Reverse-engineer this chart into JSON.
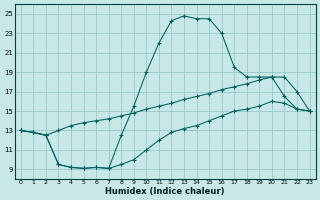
{
  "xlabel": "Humidex (Indice chaleur)",
  "bg_color": "#c8e8e8",
  "grid_color": "#96c8c8",
  "line_color": "#006060",
  "xlim": [
    -0.5,
    23.5
  ],
  "ylim": [
    8.0,
    26.0
  ],
  "xticks": [
    0,
    1,
    2,
    3,
    4,
    5,
    6,
    7,
    8,
    9,
    10,
    11,
    12,
    13,
    14,
    15,
    16,
    17,
    18,
    19,
    20,
    21,
    22,
    23
  ],
  "yticks": [
    9,
    11,
    13,
    15,
    17,
    19,
    21,
    23,
    25
  ],
  "line1_x": [
    0,
    1,
    2,
    3,
    4,
    5,
    6,
    7,
    8,
    9,
    10,
    11,
    12,
    13,
    14,
    15,
    16,
    17,
    18,
    19,
    20,
    21,
    22,
    23
  ],
  "line1_y": [
    13.0,
    12.8,
    12.5,
    13.0,
    13.5,
    13.8,
    14.0,
    14.2,
    14.5,
    14.8,
    15.2,
    15.5,
    15.8,
    16.2,
    16.5,
    16.8,
    17.2,
    17.5,
    17.8,
    18.2,
    18.5,
    18.5,
    17.0,
    15.0
  ],
  "line2_x": [
    0,
    1,
    2,
    3,
    4,
    5,
    6,
    7,
    8,
    9,
    10,
    11,
    12,
    13,
    14,
    15,
    16,
    17,
    18,
    19,
    20,
    21,
    22,
    23
  ],
  "line2_y": [
    13.0,
    12.8,
    12.5,
    9.5,
    9.2,
    9.1,
    9.2,
    9.1,
    12.5,
    15.5,
    19.0,
    22.0,
    24.3,
    24.8,
    24.5,
    24.5,
    23.0,
    19.5,
    18.5,
    18.5,
    18.5,
    16.5,
    15.2,
    15.0
  ],
  "line3_x": [
    0,
    1,
    2,
    3,
    4,
    5,
    6,
    7,
    8,
    9,
    10,
    11,
    12,
    13,
    14,
    15,
    16,
    17,
    18,
    19,
    20,
    21,
    22,
    23
  ],
  "line3_y": [
    13.0,
    12.8,
    12.5,
    9.5,
    9.2,
    9.1,
    9.2,
    9.1,
    9.5,
    10.0,
    11.0,
    12.0,
    12.8,
    13.2,
    13.5,
    14.0,
    14.5,
    15.0,
    15.2,
    15.5,
    16.0,
    15.8,
    15.2,
    15.0
  ]
}
